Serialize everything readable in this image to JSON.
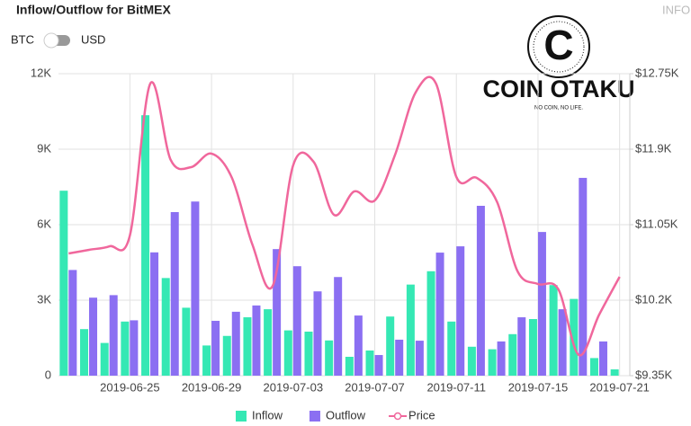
{
  "header": {
    "toggle_left": "BTC",
    "toggle_right": "USD",
    "info": "INFO"
  },
  "watermark": {
    "icon": "C",
    "name": "COIN OTAKU",
    "slogan": "NO COIN, NO LIFE."
  },
  "chart_data": {
    "type": "bar",
    "title": "Inflow/Outflow for BitMEX",
    "categories": [
      null,
      null,
      null,
      "2019-06-25",
      null,
      null,
      null,
      "2019-06-29",
      null,
      null,
      null,
      "2019-07-03",
      null,
      null,
      null,
      "2019-07-07",
      null,
      null,
      null,
      "2019-07-11",
      null,
      null,
      null,
      "2019-07-15",
      null,
      null,
      null,
      "2019-07-21"
    ],
    "series": [
      {
        "name": "Inflow",
        "color": "#35e8b4",
        "type": "bar",
        "axis": "y",
        "values": [
          7350,
          1850,
          1300,
          2150,
          10350,
          3880,
          2700,
          1200,
          1580,
          2320,
          2640,
          1800,
          1750,
          1400,
          750,
          1000,
          2350,
          3620,
          4150,
          2150,
          1150,
          1050,
          1650,
          2250,
          3600,
          3050,
          700,
          250
        ]
      },
      {
        "name": "Outflow",
        "color": "#8b6ff2",
        "type": "bar",
        "axis": "y",
        "values": [
          4200,
          3100,
          3200,
          2200,
          4900,
          6500,
          6920,
          2180,
          2540,
          2790,
          5030,
          4350,
          3350,
          3920,
          2390,
          820,
          1430,
          1390,
          4890,
          5140,
          6750,
          1360,
          2320,
          5710,
          2640,
          7860,
          1360,
          0
        ]
      },
      {
        "name": "Price",
        "color": "#f0679c",
        "type": "line",
        "axis": "y2",
        "values": [
          10726,
          10767,
          10807,
          10929,
          12639,
          11779,
          11698,
          11850,
          11577,
          10828,
          10362,
          11718,
          11759,
          11161,
          11425,
          11323,
          11840,
          12538,
          12639,
          11587,
          11577,
          11303,
          10524,
          10382,
          10321,
          9583,
          10038,
          10463
        ]
      }
    ],
    "ylim": [
      0,
      12000
    ],
    "yticks": [
      0,
      {
        "value": 3000,
        "label": "3K"
      },
      {
        "value": 6000,
        "label": "6K"
      },
      {
        "value": 9000,
        "label": "9K"
      },
      {
        "value": 12000,
        "label": "12K"
      }
    ],
    "y2lim": [
      9350,
      12750
    ],
    "y2ticks": [
      {
        "value": 9350,
        "label": "$9.35K"
      },
      {
        "value": 10200,
        "label": "$10.2K"
      },
      {
        "value": 11050,
        "label": "$11.05K"
      },
      {
        "value": 11900,
        "label": "$11.9K"
      },
      {
        "value": 12750,
        "label": "$12.75K"
      }
    ],
    "grid": true,
    "legend": "bottom"
  }
}
